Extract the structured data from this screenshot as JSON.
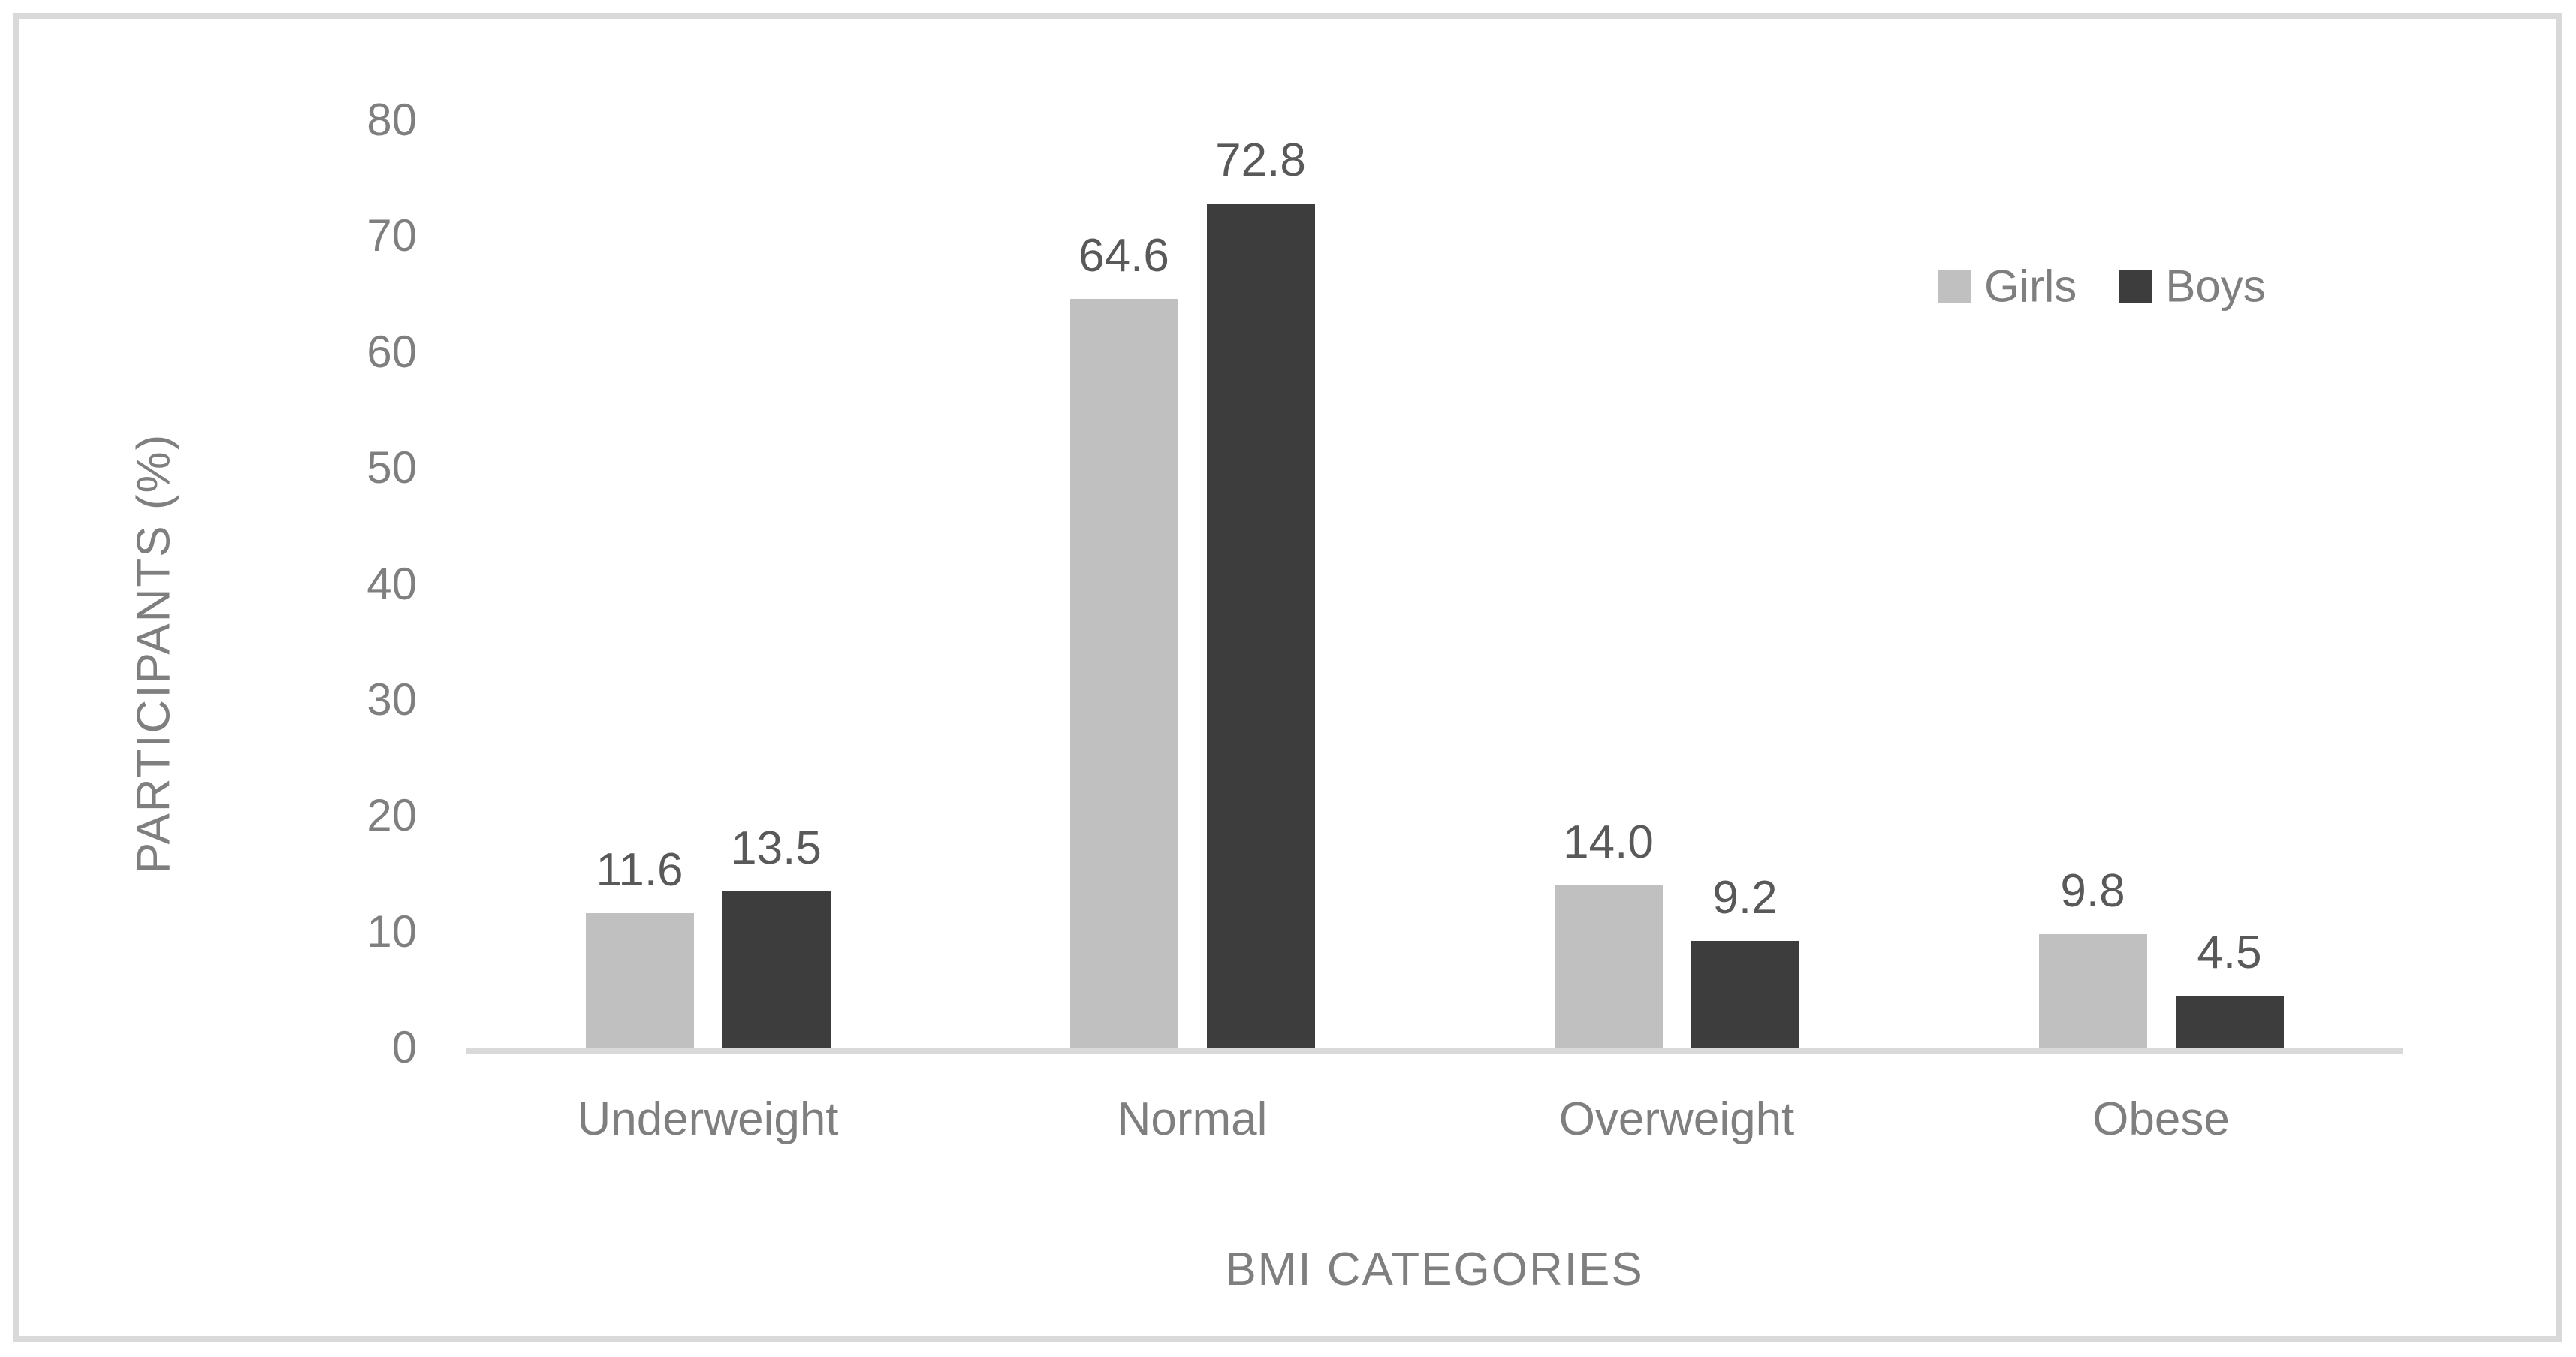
{
  "chart_data": {
    "type": "bar",
    "title": "",
    "categories": [
      "Underweight",
      "Normal",
      "Overweight",
      "Obese"
    ],
    "series": [
      {
        "name": "Girls",
        "color": "#c0c0c0",
        "values": [
          11.6,
          64.6,
          14.0,
          9.8
        ]
      },
      {
        "name": "Boys",
        "color": "#3d3d3d",
        "values": [
          13.5,
          72.8,
          9.2,
          4.5
        ]
      }
    ],
    "data_label_format": "1 decimal place",
    "xlabel": "BMI CATEGORIES",
    "ylabel": "PARTICIPANTS (%)",
    "ylim": [
      0,
      80
    ],
    "yticks": [
      0,
      10,
      20,
      30,
      40,
      50,
      60,
      70,
      80
    ],
    "grid": false,
    "legend_position": "top-right"
  },
  "colors": {
    "background": "#ffffff",
    "frame_border": "#d9d9d9",
    "axis_line": "#d9d9d9",
    "axis_text": "#7f7f7f",
    "data_label_text": "#595959"
  }
}
